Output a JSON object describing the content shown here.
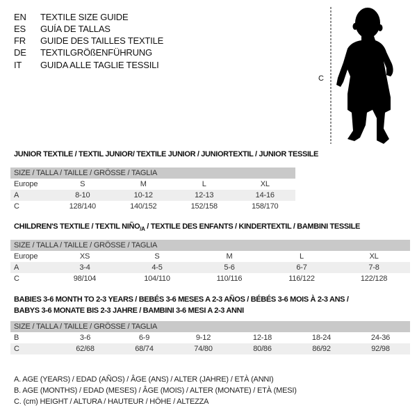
{
  "languages": [
    {
      "code": "EN",
      "title": "TEXTILE SIZE GUIDE"
    },
    {
      "code": "ES",
      "title": "GUÍA DE TALLAS"
    },
    {
      "code": "FR",
      "title": "GUIDE DES TAILLES TEXTILE"
    },
    {
      "code": "DE",
      "title": "TEXTILGRÖßENFÜHRUNG"
    },
    {
      "code": "IT",
      "title": "GUIDA ALLE TAGLIE TESSILI"
    }
  ],
  "figure": {
    "measure_label": "C",
    "icon": "child-silhouette"
  },
  "junior": {
    "title": "JUNIOR TEXTILE / TEXTIL JUNIOR/ TEXTILE JUNIOR / JUNIORTEXTIL / JUNIOR TESSILE",
    "header": "SIZE / TALLA / TAILLE / GRÖSSE / TAGLIA",
    "rows": [
      {
        "label": "Europe",
        "values": [
          "S",
          "M",
          "L",
          "XL"
        ]
      },
      {
        "label": "A",
        "values": [
          "8-10",
          "10-12",
          "12-13",
          "14-16"
        ]
      },
      {
        "label": "C",
        "values": [
          "128/140",
          "140/152",
          "152/158",
          "158/170"
        ]
      }
    ]
  },
  "children": {
    "title_a": "CHILDREN'S TEXTILE / TEXTIL NIÑO",
    "title_sub": "/A",
    "title_b": " / TEXTILE DES ENFANTS / KINDERTEXTIL / BAMBINI TESSILE",
    "header": "SIZE / TALLA / TAILLE / GRÖSSE / TAGLIA",
    "rows": [
      {
        "label": "Europe",
        "values": [
          "XS",
          "S",
          "M",
          "L",
          "XL"
        ]
      },
      {
        "label": "A",
        "values": [
          "3-4",
          "4-5",
          "5-6",
          "6-7",
          "7-8"
        ]
      },
      {
        "label": "C",
        "values": [
          "98/104",
          "104/110",
          "110/116",
          "116/122",
          "122/128"
        ]
      }
    ]
  },
  "babies": {
    "title_line1": "BABIES 3-6 MONTH TO 2-3 YEARS / BEBÉS 3-6 MESES A 2-3 AÑOS / BÉBÉS 3-6 MOIS À 2-3 ANS /",
    "title_line2": "BABYS 3-6 MONATE BIS 2-3 JAHRE / BAMBINI 3-6 MESI A 2-3 ANNI",
    "header": "SIZE / TALLA / TAILLE / GRÖSSE / TAGLIA",
    "rows": [
      {
        "label": "B",
        "values": [
          "3-6",
          "6-9",
          "9-12",
          "12-18",
          "18-24",
          "24-36"
        ]
      },
      {
        "label": "C",
        "values": [
          "62/68",
          "68/74",
          "74/80",
          "80/86",
          "86/92",
          "92/98"
        ]
      }
    ]
  },
  "legend": [
    "A. AGE (YEARS) / EDAD (AÑOS) / ÂGE (ANS) / ALTER (JAHRE) / ETÀ (ANNI)",
    "B. AGE (MONTHS) / EDAD (MESES) / ÂGE (MOIS) / ALTER (MONATE) / ETÀ (MESI)",
    "C. (cm) HEIGHT / ALTURA / HAUTEUR / HÖHE / ALTEZZA"
  ]
}
